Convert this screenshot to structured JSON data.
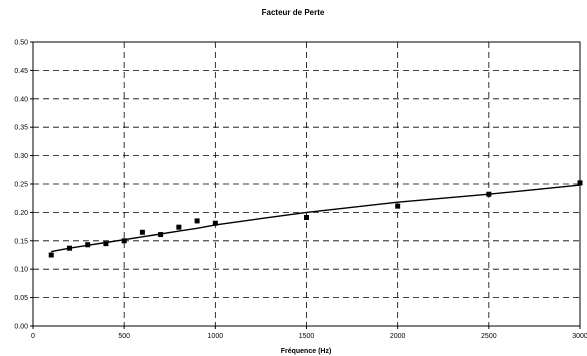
{
  "chart_data": {
    "type": "scatter",
    "title": "Facteur de Perte",
    "xlabel": "Fréquence (Hz)",
    "ylabel": "",
    "xlim": [
      0,
      3000
    ],
    "ylim": [
      0,
      0.5
    ],
    "grid": true,
    "grid_style": "dashed",
    "legend": false,
    "x_ticks": [
      "0",
      "500",
      "1000",
      "1500",
      "2000",
      "2500",
      "3000"
    ],
    "y_ticks": [
      "0.00",
      "0.05",
      "0.10",
      "0.15",
      "0.20",
      "0.25",
      "0.30",
      "0.35",
      "0.40",
      "0.45",
      "0.50"
    ],
    "series": [
      {
        "kind": "points",
        "marker": "square",
        "color": "#000000",
        "x": [
          100,
          200,
          300,
          400,
          500,
          600,
          700,
          800,
          900,
          1000,
          1500,
          2000,
          2500,
          3000
        ],
        "y": [
          0.125,
          0.137,
          0.143,
          0.145,
          0.15,
          0.165,
          0.161,
          0.174,
          0.185,
          0.181,
          0.191,
          0.211,
          0.232,
          0.252
        ]
      },
      {
        "kind": "fit-line",
        "color": "#000000",
        "x": [
          100,
          200,
          300,
          400,
          500,
          600,
          700,
          800,
          900,
          1000,
          1250,
          1500,
          1750,
          2000,
          2250,
          2500,
          2750,
          3000
        ],
        "y": [
          0.131,
          0.137,
          0.142,
          0.147,
          0.152,
          0.157,
          0.162,
          0.167,
          0.172,
          0.178,
          0.189,
          0.2,
          0.209,
          0.218,
          0.225,
          0.232,
          0.24,
          0.248
        ]
      }
    ]
  }
}
